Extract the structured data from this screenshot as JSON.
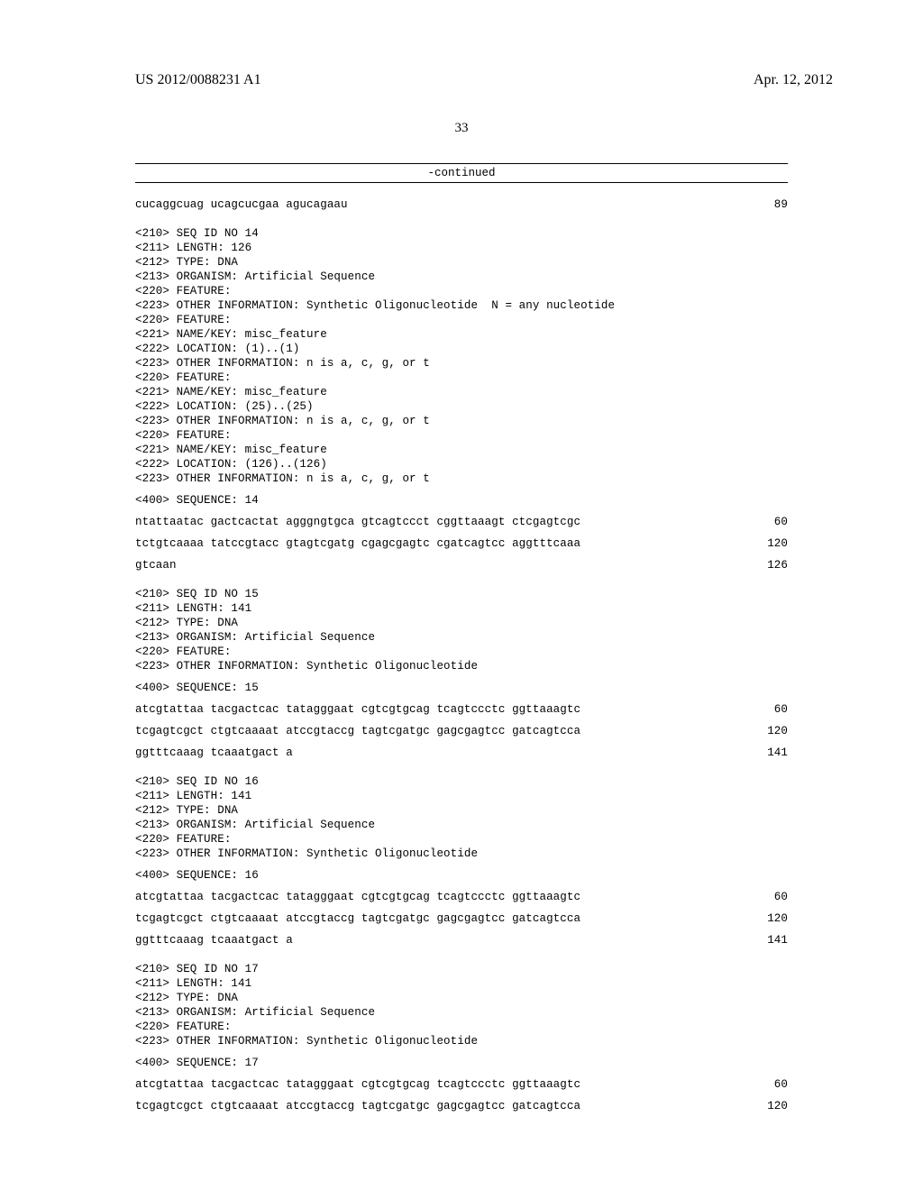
{
  "header": {
    "pubnum": "US 2012/0088231 A1",
    "date": "Apr. 12, 2012",
    "pagenum": "33"
  },
  "continued": "-continued",
  "seq13_line": {
    "seq": "cucaggcuag ucagcucgaa agucagaau",
    "num": "89"
  },
  "seq14": {
    "meta": [
      "<210> SEQ ID NO 14",
      "<211> LENGTH: 126",
      "<212> TYPE: DNA",
      "<213> ORGANISM: Artificial Sequence",
      "<220> FEATURE:",
      "<223> OTHER INFORMATION: Synthetic Oligonucleotide  N = any nucleotide",
      "<220> FEATURE:",
      "<221> NAME/KEY: misc_feature",
      "<222> LOCATION: (1)..(1)",
      "<223> OTHER INFORMATION: n is a, c, g, or t",
      "<220> FEATURE:",
      "<221> NAME/KEY: misc_feature",
      "<222> LOCATION: (25)..(25)",
      "<223> OTHER INFORMATION: n is a, c, g, or t",
      "<220> FEATURE:",
      "<221> NAME/KEY: misc_feature",
      "<222> LOCATION: (126)..(126)",
      "<223> OTHER INFORMATION: n is a, c, g, or t"
    ],
    "seqlabel": "<400> SEQUENCE: 14",
    "lines": [
      {
        "seq": "ntattaatac gactcactat agggngtgca gtcagtccct cggttaaagt ctcgagtcgc",
        "num": "60"
      },
      {
        "seq": "tctgtcaaaa tatccgtacc gtagtcgatg cgagcgagtc cgatcagtcc aggtttcaaa",
        "num": "120"
      },
      {
        "seq": "gtcaan",
        "num": "126"
      }
    ]
  },
  "seq15": {
    "meta": [
      "<210> SEQ ID NO 15",
      "<211> LENGTH: 141",
      "<212> TYPE: DNA",
      "<213> ORGANISM: Artificial Sequence",
      "<220> FEATURE:",
      "<223> OTHER INFORMATION: Synthetic Oligonucleotide"
    ],
    "seqlabel": "<400> SEQUENCE: 15",
    "lines": [
      {
        "seq": "atcgtattaa tacgactcac tatagggaat cgtcgtgcag tcagtccctc ggttaaagtc",
        "num": "60"
      },
      {
        "seq": "tcgagtcgct ctgtcaaaat atccgtaccg tagtcgatgc gagcgagtcc gatcagtcca",
        "num": "120"
      },
      {
        "seq": "ggtttcaaag tcaaatgact a",
        "num": "141"
      }
    ]
  },
  "seq16": {
    "meta": [
      "<210> SEQ ID NO 16",
      "<211> LENGTH: 141",
      "<212> TYPE: DNA",
      "<213> ORGANISM: Artificial Sequence",
      "<220> FEATURE:",
      "<223> OTHER INFORMATION: Synthetic Oligonucleotide"
    ],
    "seqlabel": "<400> SEQUENCE: 16",
    "lines": [
      {
        "seq": "atcgtattaa tacgactcac tatagggaat cgtcgtgcag tcagtccctc ggttaaagtc",
        "num": "60"
      },
      {
        "seq": "tcgagtcgct ctgtcaaaat atccgtaccg tagtcgatgc gagcgagtcc gatcagtcca",
        "num": "120"
      },
      {
        "seq": "ggtttcaaag tcaaatgact a",
        "num": "141"
      }
    ]
  },
  "seq17": {
    "meta": [
      "<210> SEQ ID NO 17",
      "<211> LENGTH: 141",
      "<212> TYPE: DNA",
      "<213> ORGANISM: Artificial Sequence",
      "<220> FEATURE:",
      "<223> OTHER INFORMATION: Synthetic Oligonucleotide"
    ],
    "seqlabel": "<400> SEQUENCE: 17",
    "lines": [
      {
        "seq": "atcgtattaa tacgactcac tatagggaat cgtcgtgcag tcagtccctc ggttaaagtc",
        "num": "60"
      },
      {
        "seq": "tcgagtcgct ctgtcaaaat atccgtaccg tagtcgatgc gagcgagtcc gatcagtcca",
        "num": "120"
      }
    ]
  }
}
